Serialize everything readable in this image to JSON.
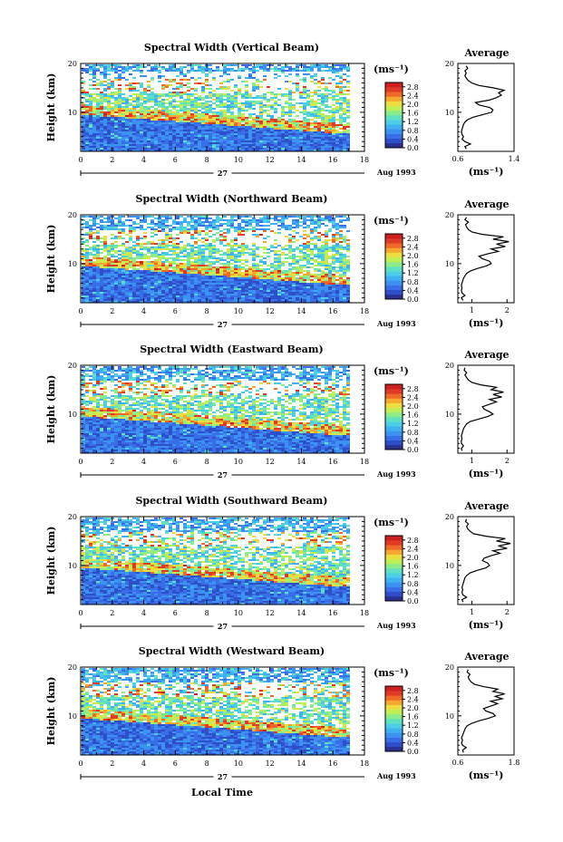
{
  "chart_data": {
    "type": "heatmap",
    "x_axis": {
      "label": "Local Time",
      "range": [
        0,
        18
      ],
      "ticks": [
        "0",
        "2",
        "4",
        "6",
        "8",
        "10",
        "12",
        "14",
        "16",
        "18"
      ],
      "day_label": "27",
      "month_year": "Aug 1993"
    },
    "y_axis": {
      "label": "Height (km)",
      "range": [
        2,
        20
      ],
      "ticks": [
        "10",
        "20"
      ]
    },
    "colorbar": {
      "unit": "(ms⁻¹)",
      "ticks": [
        "0.0",
        "0.4",
        "0.8",
        "1.2",
        "1.6",
        "2.0",
        "2.4",
        "2.8"
      ],
      "range": [
        0,
        3.0
      ],
      "colors": [
        "#2b2f8f",
        "#2e4fc8",
        "#3a6ee8",
        "#3c92f0",
        "#3fb0f2",
        "#4ccfe6",
        "#5fe0c0",
        "#8cec8a",
        "#c0ee55",
        "#eedd40",
        "#f5a830",
        "#ef6a28",
        "#e03a26",
        "#cc2020"
      ]
    },
    "panels": [
      {
        "title": "Spectral Width (Vertical Beam)",
        "profile_title": "Average",
        "profile_xlabel": "(ms⁻¹)",
        "profile_xticks": [
          "0.6",
          "1.4"
        ],
        "profile_xrange": [
          0.6,
          1.4
        ],
        "profile_yticks": [
          "10",
          "20"
        ],
        "profile": [
          [
            2.5,
            0.72
          ],
          [
            3,
            0.7
          ],
          [
            3.5,
            0.78
          ],
          [
            4,
            0.7
          ],
          [
            4.5,
            0.66
          ],
          [
            5,
            0.68
          ],
          [
            5.5,
            0.66
          ],
          [
            6,
            0.65
          ],
          [
            6.5,
            0.66
          ],
          [
            7,
            0.67
          ],
          [
            7.5,
            0.68
          ],
          [
            8,
            0.7
          ],
          [
            8.5,
            0.74
          ],
          [
            9,
            0.82
          ],
          [
            9.5,
            0.95
          ],
          [
            10,
            1.08
          ],
          [
            10.5,
            1.1
          ],
          [
            11,
            1.05
          ],
          [
            11.5,
            0.9
          ],
          [
            12,
            0.85
          ],
          [
            12.5,
            1.05
          ],
          [
            13,
            1.15
          ],
          [
            13.5,
            1.22
          ],
          [
            14,
            1.18
          ],
          [
            14.5,
            1.26
          ],
          [
            15,
            1.1
          ],
          [
            15.5,
            0.9
          ],
          [
            16,
            0.8
          ],
          [
            16.5,
            0.75
          ],
          [
            17,
            0.72
          ],
          [
            17.5,
            0.7
          ],
          [
            18,
            0.72
          ],
          [
            18.5,
            0.7
          ],
          [
            19,
            0.74
          ],
          [
            19.5,
            0.72
          ]
        ]
      },
      {
        "title": "Spectral Width (Northward Beam)",
        "profile_title": "Average",
        "profile_xlabel": "(ms⁻¹)",
        "profile_xticks": [
          "1",
          "2"
        ],
        "profile_xrange": [
          0.6,
          2.2
        ],
        "profile_yticks": [
          "10",
          "20"
        ],
        "profile": [
          [
            2.5,
            0.75
          ],
          [
            3,
            0.7
          ],
          [
            3.5,
            0.8
          ],
          [
            4,
            0.72
          ],
          [
            4.5,
            0.7
          ],
          [
            5,
            0.72
          ],
          [
            5.5,
            0.7
          ],
          [
            6,
            0.72
          ],
          [
            6.5,
            0.74
          ],
          [
            7,
            0.76
          ],
          [
            7.5,
            0.8
          ],
          [
            8,
            0.85
          ],
          [
            8.5,
            0.95
          ],
          [
            9,
            1.15
          ],
          [
            9.5,
            1.4
          ],
          [
            10,
            1.55
          ],
          [
            10.5,
            1.5
          ],
          [
            11,
            1.3
          ],
          [
            11.5,
            1.2
          ],
          [
            12,
            1.45
          ],
          [
            12.5,
            1.75
          ],
          [
            13,
            1.55
          ],
          [
            13.5,
            1.95
          ],
          [
            14,
            1.7
          ],
          [
            14.5,
            2.05
          ],
          [
            15,
            1.6
          ],
          [
            15.5,
            1.9
          ],
          [
            16,
            1.3
          ],
          [
            16.5,
            1.0
          ],
          [
            17,
            0.9
          ],
          [
            17.5,
            0.85
          ],
          [
            18,
            0.82
          ],
          [
            18.5,
            0.9
          ],
          [
            19,
            0.8
          ],
          [
            19.5,
            0.85
          ]
        ]
      },
      {
        "title": "Spectral Width (Eastward Beam)",
        "profile_title": "Average",
        "profile_xlabel": "(ms⁻¹)",
        "profile_xticks": [
          "1",
          "2"
        ],
        "profile_xrange": [
          0.6,
          2.2
        ],
        "profile_yticks": [
          "10",
          "20"
        ],
        "profile": [
          [
            2.5,
            0.72
          ],
          [
            3,
            0.7
          ],
          [
            3.5,
            0.76
          ],
          [
            4,
            0.7
          ],
          [
            4.5,
            0.7
          ],
          [
            5,
            0.72
          ],
          [
            5.5,
            0.7
          ],
          [
            6,
            0.72
          ],
          [
            6.5,
            0.74
          ],
          [
            7,
            0.76
          ],
          [
            7.5,
            0.8
          ],
          [
            8,
            0.85
          ],
          [
            8.5,
            0.95
          ],
          [
            9,
            1.2
          ],
          [
            9.5,
            1.45
          ],
          [
            10,
            1.6
          ],
          [
            10.5,
            1.5
          ],
          [
            11,
            1.35
          ],
          [
            11.5,
            1.3
          ],
          [
            12,
            1.5
          ],
          [
            12.5,
            1.7
          ],
          [
            13,
            1.5
          ],
          [
            13.5,
            1.85
          ],
          [
            14,
            1.6
          ],
          [
            14.5,
            1.9
          ],
          [
            15,
            1.55
          ],
          [
            15.5,
            1.7
          ],
          [
            16,
            1.25
          ],
          [
            16.5,
            1.0
          ],
          [
            17,
            0.9
          ],
          [
            17.5,
            0.85
          ],
          [
            18,
            0.8
          ],
          [
            18.5,
            0.85
          ],
          [
            19,
            0.78
          ],
          [
            19.5,
            0.8
          ]
        ]
      },
      {
        "title": "Spectral Width (Southward Beam)",
        "profile_title": "Average",
        "profile_xlabel": "(ms⁻¹)",
        "profile_xticks": [
          "1",
          "2"
        ],
        "profile_xrange": [
          0.6,
          2.2
        ],
        "profile_yticks": [
          "10",
          "20"
        ],
        "profile": [
          [
            2.5,
            0.75
          ],
          [
            3,
            0.72
          ],
          [
            3.5,
            0.85
          ],
          [
            4,
            0.74
          ],
          [
            4.5,
            0.72
          ],
          [
            5,
            0.74
          ],
          [
            5.5,
            0.72
          ],
          [
            6,
            0.74
          ],
          [
            6.5,
            0.76
          ],
          [
            7,
            0.78
          ],
          [
            7.5,
            0.8
          ],
          [
            8,
            0.86
          ],
          [
            8.5,
            0.95
          ],
          [
            9,
            1.15
          ],
          [
            9.5,
            1.4
          ],
          [
            10,
            1.5
          ],
          [
            10.5,
            1.45
          ],
          [
            11,
            1.3
          ],
          [
            11.5,
            1.35
          ],
          [
            12,
            1.55
          ],
          [
            12.5,
            1.8
          ],
          [
            13,
            1.6
          ],
          [
            13.5,
            2.0
          ],
          [
            14,
            1.75
          ],
          [
            14.5,
            2.1
          ],
          [
            15,
            1.7
          ],
          [
            15.5,
            1.95
          ],
          [
            16,
            1.4
          ],
          [
            16.5,
            1.05
          ],
          [
            17,
            0.95
          ],
          [
            17.5,
            0.88
          ],
          [
            18,
            0.85
          ],
          [
            18.5,
            0.9
          ],
          [
            19,
            0.82
          ],
          [
            19.5,
            0.85
          ]
        ]
      },
      {
        "title": "Spectral Width (Westward Beam)",
        "profile_title": "Average",
        "profile_xlabel": "(ms⁻¹)",
        "profile_xticks": [
          "0.6",
          "1.8"
        ],
        "profile_xrange": [
          0.6,
          1.8
        ],
        "profile_yticks": [
          "10",
          "20"
        ],
        "profile": [
          [
            2.5,
            0.72
          ],
          [
            3,
            0.7
          ],
          [
            3.5,
            0.78
          ],
          [
            4,
            0.7
          ],
          [
            4.5,
            0.68
          ],
          [
            5,
            0.7
          ],
          [
            5.5,
            0.68
          ],
          [
            6,
            0.7
          ],
          [
            6.5,
            0.72
          ],
          [
            7,
            0.74
          ],
          [
            7.5,
            0.76
          ],
          [
            8,
            0.8
          ],
          [
            8.5,
            0.9
          ],
          [
            9,
            1.05
          ],
          [
            9.5,
            1.25
          ],
          [
            10,
            1.4
          ],
          [
            10.5,
            1.35
          ],
          [
            11,
            1.2
          ],
          [
            11.5,
            1.15
          ],
          [
            12,
            1.3
          ],
          [
            12.5,
            1.45
          ],
          [
            13,
            1.3
          ],
          [
            13.5,
            1.55
          ],
          [
            14,
            1.4
          ],
          [
            14.5,
            1.6
          ],
          [
            15,
            1.35
          ],
          [
            15.5,
            1.45
          ],
          [
            16,
            1.15
          ],
          [
            16.5,
            0.95
          ],
          [
            17,
            0.88
          ],
          [
            17.5,
            0.84
          ],
          [
            18,
            0.82
          ],
          [
            18.5,
            0.86
          ],
          [
            19,
            0.8
          ],
          [
            19.5,
            0.82
          ]
        ]
      }
    ]
  }
}
